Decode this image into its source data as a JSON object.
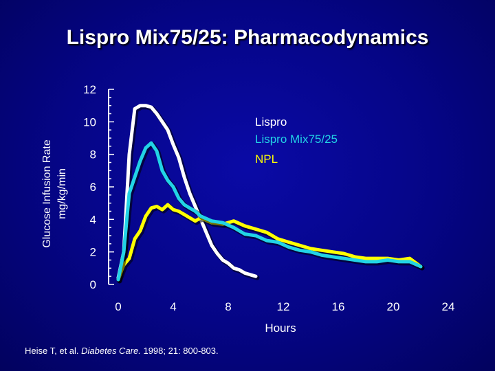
{
  "slide": {
    "title": "Lispro Mix75/25: Pharmacodynamics",
    "citation_prefix": "Heise T, et al. ",
    "citation_journal": "Diabetes Care.",
    "citation_suffix": " 1998; 21: 800-803.",
    "background_color": "#050585"
  },
  "chart_data": {
    "type": "line",
    "title": "",
    "xlabel": "Hours",
    "ylabel": "Glucose Infusion Rate",
    "ylabel_unit": "mg/kg/min",
    "xlim": [
      0,
      24
    ],
    "ylim": [
      0,
      12
    ],
    "x_ticks": [
      "0",
      "4",
      "8",
      "12",
      "16",
      "20",
      "24"
    ],
    "y_ticks": [
      "0",
      "2",
      "4",
      "6",
      "8",
      "10",
      "12"
    ],
    "grid": false,
    "legend_position": "top-right",
    "series": [
      {
        "name": "Lispro",
        "color": "#ffffff",
        "x": [
          0,
          0.4,
          0.8,
          1.2,
          1.6,
          2.0,
          2.4,
          2.8,
          3.2,
          3.6,
          4.0,
          4.4,
          4.8,
          5.2,
          5.6,
          6.0,
          6.4,
          6.8,
          7.2,
          7.6,
          8.0,
          8.4,
          8.8,
          9.2,
          9.6,
          10.0
        ],
        "y": [
          0.4,
          2.0,
          8.0,
          10.8,
          11.0,
          11.0,
          10.9,
          10.5,
          10.0,
          9.5,
          8.6,
          7.8,
          6.6,
          5.6,
          4.8,
          4.0,
          3.2,
          2.4,
          1.9,
          1.5,
          1.3,
          1.0,
          0.9,
          0.7,
          0.6,
          0.5
        ]
      },
      {
        "name": "Lispro Mix75/25",
        "color": "#22d3e6",
        "x": [
          0,
          0.4,
          0.8,
          1.2,
          1.6,
          2.0,
          2.4,
          2.8,
          3.2,
          3.6,
          4.0,
          4.4,
          4.8,
          5.2,
          5.6,
          6.0,
          6.8,
          7.6,
          8.4,
          9.2,
          10.0,
          10.8,
          11.6,
          12.4,
          13.2,
          14.0,
          14.8,
          15.6,
          16.4,
          17.2,
          18.0,
          18.8,
          19.6,
          20.4,
          21.2,
          22.0
        ],
        "y": [
          0.3,
          2.0,
          5.6,
          6.6,
          7.6,
          8.4,
          8.7,
          8.2,
          7.0,
          6.4,
          6.0,
          5.3,
          4.9,
          4.7,
          4.5,
          4.2,
          3.9,
          3.8,
          3.5,
          3.1,
          3.0,
          2.7,
          2.6,
          2.3,
          2.1,
          2.0,
          1.8,
          1.7,
          1.6,
          1.5,
          1.4,
          1.4,
          1.5,
          1.4,
          1.4,
          1.1
        ]
      },
      {
        "name": "NPL",
        "color": "#ffff00",
        "x": [
          0,
          0.4,
          0.8,
          1.2,
          1.6,
          2.0,
          2.4,
          2.8,
          3.2,
          3.6,
          4.0,
          4.4,
          4.8,
          5.2,
          5.6,
          6.0,
          6.8,
          7.6,
          8.4,
          9.2,
          10.0,
          10.8,
          11.6,
          12.4,
          13.2,
          14.0,
          14.8,
          15.6,
          16.4,
          17.2,
          18.0,
          18.8,
          19.6,
          20.4,
          21.2,
          22.0
        ],
        "y": [
          0.3,
          1.2,
          1.6,
          2.8,
          3.3,
          4.2,
          4.7,
          4.8,
          4.6,
          4.9,
          4.6,
          4.5,
          4.3,
          4.1,
          3.9,
          4.1,
          3.8,
          3.7,
          3.9,
          3.6,
          3.4,
          3.2,
          2.8,
          2.6,
          2.4,
          2.2,
          2.1,
          2.0,
          1.9,
          1.7,
          1.6,
          1.6,
          1.6,
          1.5,
          1.6,
          1.1
        ]
      }
    ]
  }
}
